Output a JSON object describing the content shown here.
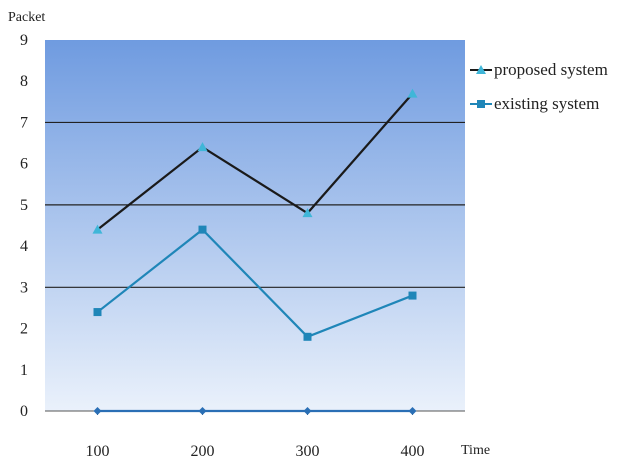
{
  "chart_data": {
    "type": "line",
    "title": "",
    "xlabel": "Time",
    "ylabel": "Packet",
    "x": [
      100,
      200,
      300,
      400
    ],
    "ylim": [
      0,
      9
    ],
    "yticks": [
      0,
      1,
      2,
      3,
      4,
      5,
      6,
      7,
      8,
      9
    ],
    "grid_y": [
      3,
      5,
      7
    ],
    "legend_position": "right",
    "background": "blue-gradient",
    "series": [
      {
        "name": "proposed system",
        "values": [
          4.4,
          6.4,
          4.8,
          7.7
        ],
        "color": "#1a1a1a",
        "marker": "triangle",
        "marker_color": "#3fb6d8"
      },
      {
        "name": "existing system",
        "values": [
          2.4,
          4.4,
          1.8,
          2.8
        ],
        "color": "#1f86b8",
        "marker": "square",
        "marker_color": "#1f86b8"
      },
      {
        "name": "",
        "values": [
          0,
          0,
          0,
          0
        ],
        "color": "#2a6fb5",
        "marker": "diamond",
        "marker_color": "#2a6fb5"
      }
    ],
    "colors": {
      "plot_top": "#6f9be0",
      "plot_bottom": "#eaf1fb",
      "grid": "#222222"
    }
  }
}
